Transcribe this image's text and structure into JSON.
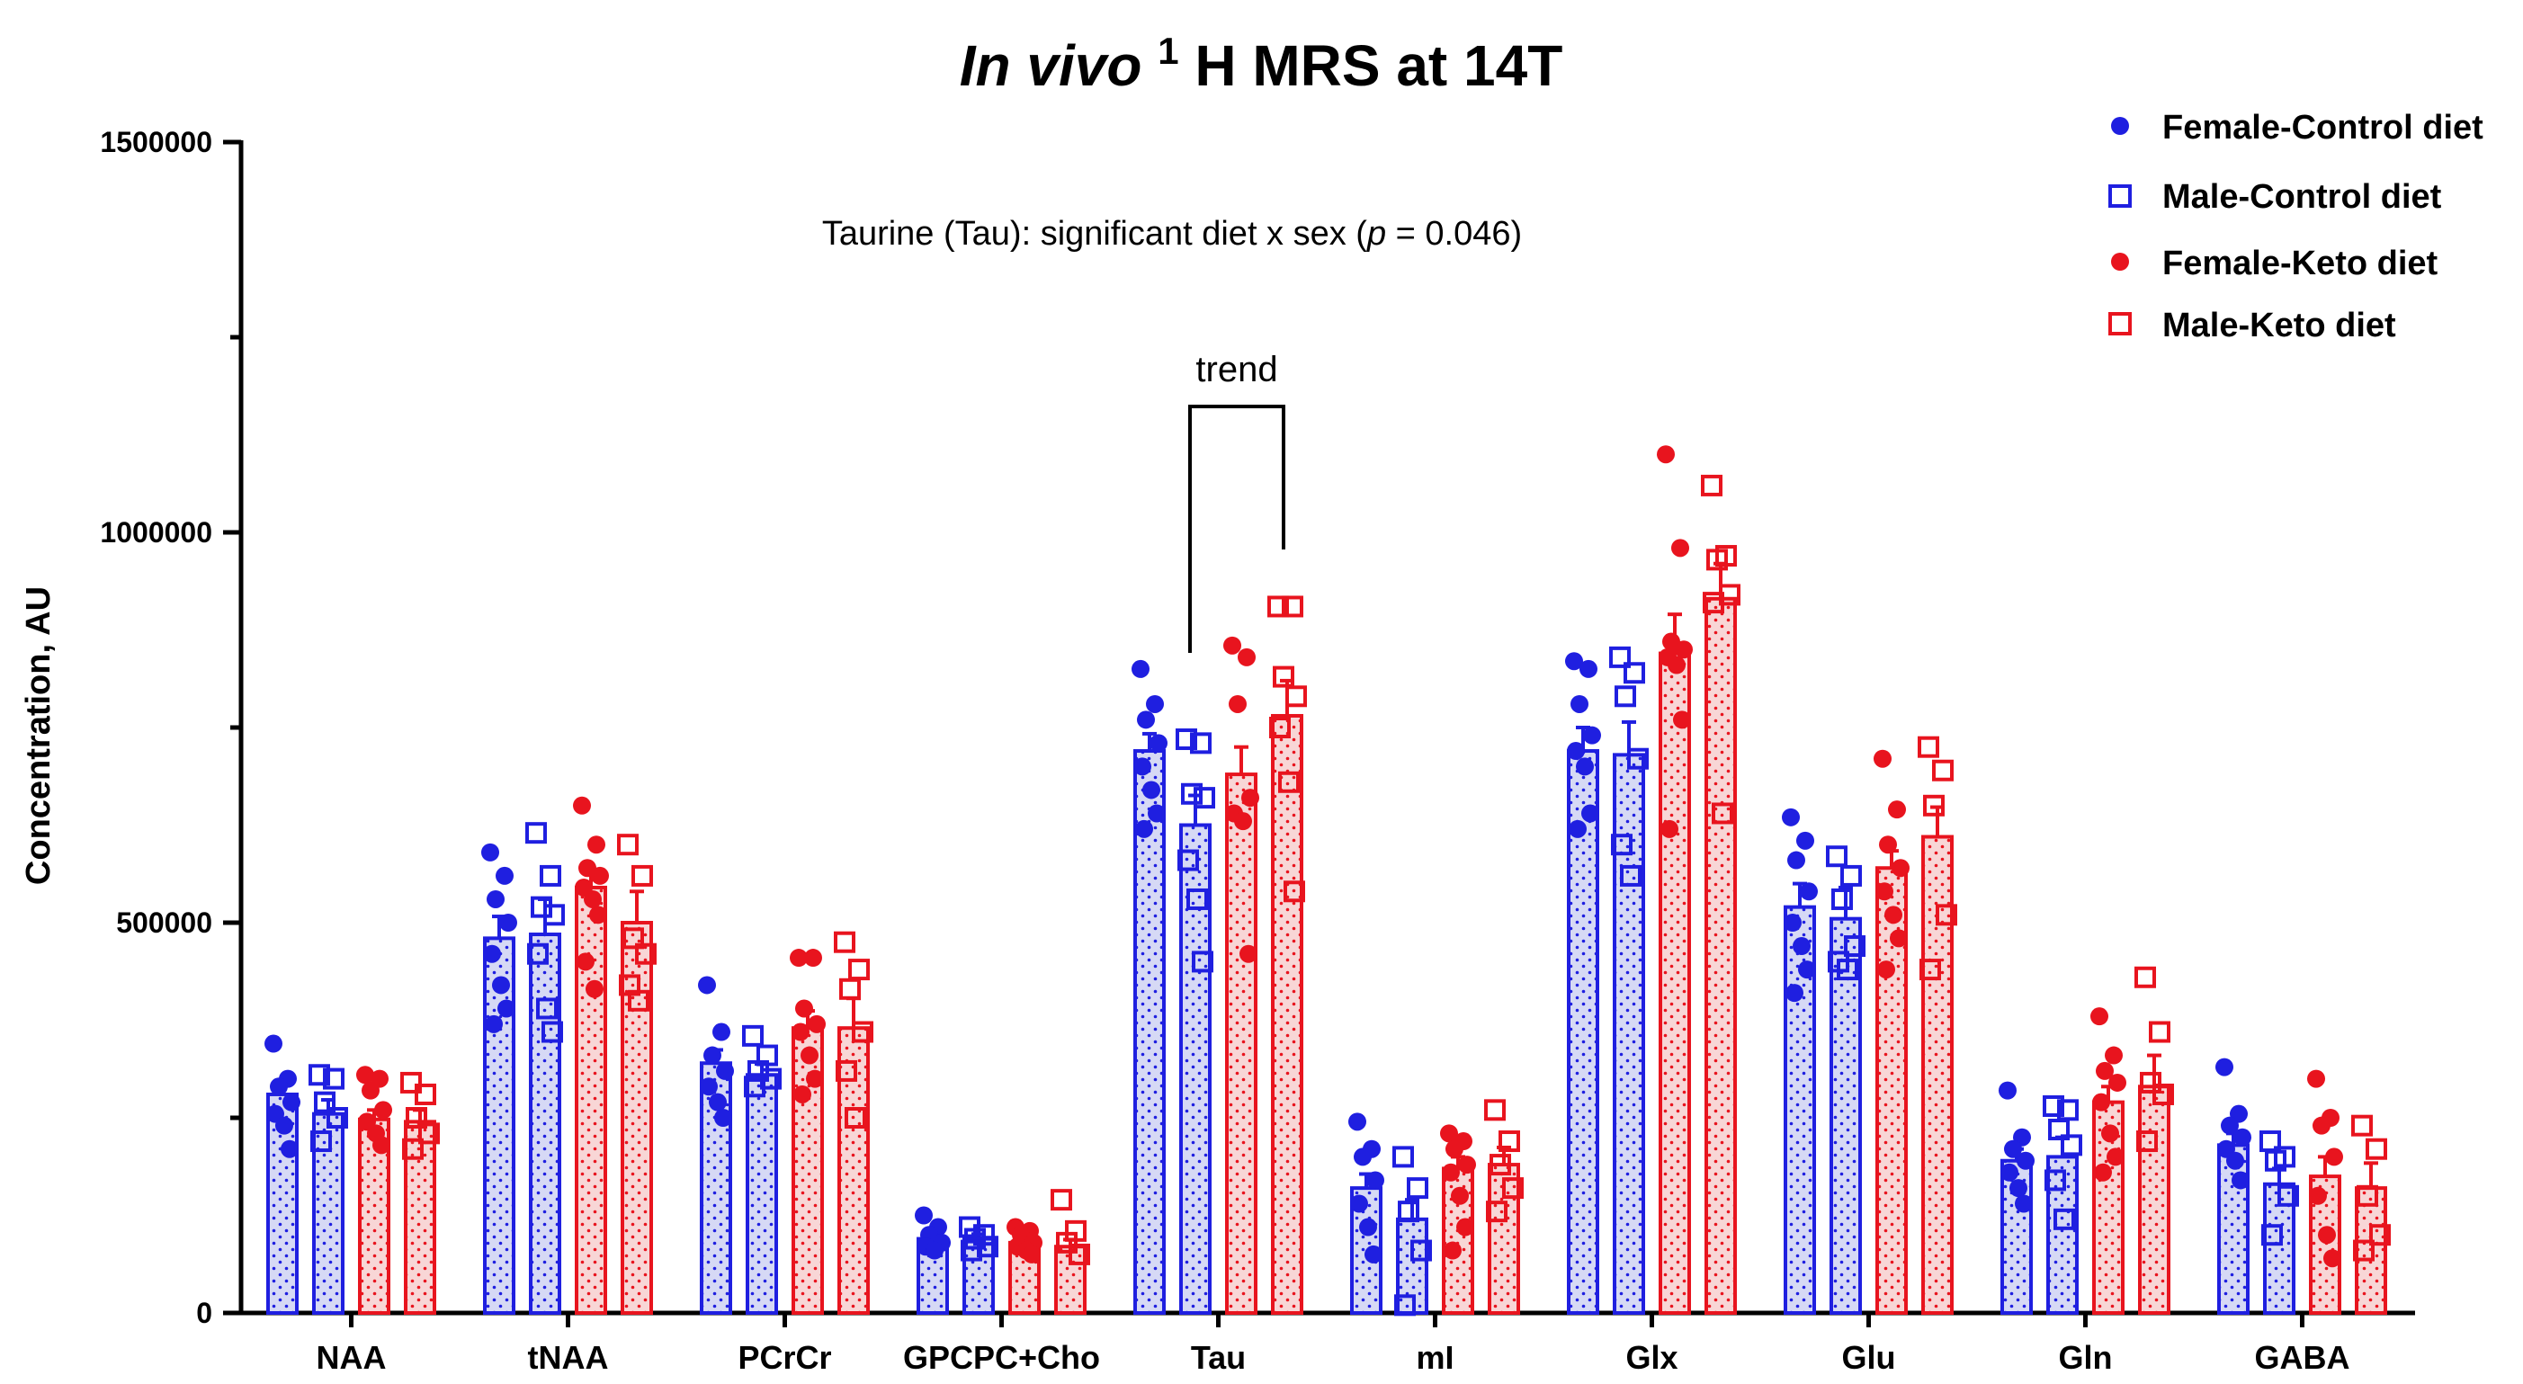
{
  "chart_data": {
    "type": "bar",
    "title": {
      "italic_part": "In vivo",
      "superscript": "1",
      "rest": "H MRS at 14T"
    },
    "ylabel": "Concentration, AU",
    "xlabel": "",
    "ylim": [
      0,
      1500000
    ],
    "yticks": [
      0,
      500000,
      1000000,
      1500000
    ],
    "ytick_labels": [
      "0",
      "500000",
      "1000000",
      "1500000"
    ],
    "categories": [
      "NAA",
      "tNAA",
      "PCrCr",
      "GPCPC+Cho",
      "Tau",
      "mI",
      "Glx",
      "Glu",
      "Gln",
      "GABA"
    ],
    "legend_position": "top-right",
    "grid": false,
    "colors": {
      "blue": "#1f1fe0",
      "red": "#e8141e",
      "blue_fill": "#d6d9f5",
      "red_fill": "#f8d6d6",
      "axis": "#000000"
    },
    "series": [
      {
        "name": "Female-Control diet",
        "color": "blue",
        "marker": "circle",
        "values": [
          280000,
          480000,
          320000,
          95000,
          720000,
          160000,
          720000,
          520000,
          195000,
          215000
        ],
        "errors": [
          15000,
          28000,
          17000,
          6000,
          22000,
          18000,
          30000,
          30000,
          15000,
          15000
        ],
        "points": [
          [
            345000,
            300000,
            290000,
            270000,
            255000,
            240000,
            210000
          ],
          [
            590000,
            560000,
            530000,
            500000,
            460000,
            420000,
            390000,
            370000
          ],
          [
            420000,
            360000,
            330000,
            310000,
            290000,
            270000,
            250000
          ],
          [
            125000,
            110000,
            100000,
            90000,
            85000,
            80000
          ],
          [
            825000,
            780000,
            760000,
            730000,
            700000,
            670000,
            640000,
            620000
          ],
          [
            245000,
            210000,
            200000,
            170000,
            140000,
            110000,
            75000
          ],
          [
            835000,
            825000,
            780000,
            740000,
            720000,
            700000,
            640000,
            620000
          ],
          [
            635000,
            605000,
            580000,
            540000,
            500000,
            470000,
            440000,
            410000
          ],
          [
            285000,
            225000,
            210000,
            195000,
            180000,
            160000,
            140000
          ],
          [
            315000,
            255000,
            240000,
            225000,
            210000,
            195000,
            170000
          ]
        ]
      },
      {
        "name": "Male-Control diet",
        "color": "blue",
        "marker": "square",
        "values": [
          255000,
          485000,
          305000,
          95000,
          625000,
          120000,
          715000,
          505000,
          200000,
          165000
        ],
        "errors": [
          18000,
          45000,
          14000,
          6000,
          38000,
          25000,
          42000,
          40000,
          25000,
          20000
        ],
        "points": [
          [
            305000,
            300000,
            270000,
            250000,
            220000
          ],
          [
            615000,
            560000,
            520000,
            510000,
            460000,
            390000,
            360000
          ],
          [
            355000,
            330000,
            310000,
            300000,
            290000
          ],
          [
            110000,
            100000,
            95000,
            85000,
            80000
          ],
          [
            735000,
            730000,
            665000,
            660000,
            580000,
            530000,
            450000
          ],
          [
            200000,
            160000,
            130000,
            80000,
            10000
          ],
          [
            840000,
            820000,
            790000,
            710000,
            600000,
            560000
          ],
          [
            585000,
            560000,
            530000,
            470000,
            450000,
            440000
          ],
          [
            265000,
            260000,
            235000,
            215000,
            170000,
            120000
          ],
          [
            220000,
            200000,
            195000,
            150000,
            100000
          ]
        ]
      },
      {
        "name": "Female-Keto diet",
        "color": "red",
        "marker": "circle",
        "values": [
          248000,
          545000,
          365000,
          90000,
          690000,
          185000,
          845000,
          570000,
          270000,
          175000
        ],
        "errors": [
          12000,
          22000,
          22000,
          5000,
          35000,
          15000,
          50000,
          22000,
          20000,
          25000
        ],
        "points": [
          [
            305000,
            300000,
            285000,
            260000,
            245000,
            230000,
            215000
          ],
          [
            650000,
            600000,
            570000,
            560000,
            545000,
            530000,
            510000,
            450000,
            415000
          ],
          [
            455000,
            455000,
            390000,
            370000,
            360000,
            330000,
            300000,
            280000
          ],
          [
            110000,
            105000,
            100000,
            90000,
            85000,
            80000,
            75000
          ],
          [
            855000,
            840000,
            780000,
            660000,
            640000,
            630000,
            460000
          ],
          [
            230000,
            220000,
            210000,
            190000,
            180000,
            150000,
            110000,
            80000
          ],
          [
            1100000,
            980000,
            860000,
            850000,
            840000,
            830000,
            760000,
            620000
          ],
          [
            710000,
            645000,
            600000,
            570000,
            540000,
            510000,
            480000,
            440000
          ],
          [
            380000,
            330000,
            310000,
            295000,
            270000,
            230000,
            200000,
            180000
          ],
          [
            300000,
            250000,
            240000,
            200000,
            150000,
            100000,
            70000
          ]
        ]
      },
      {
        "name": "Male-Keto diet",
        "color": "red",
        "marker": "square",
        "values": [
          245000,
          500000,
          365000,
          85000,
          765000,
          190000,
          915000,
          610000,
          290000,
          160000
        ],
        "errors": [
          15000,
          40000,
          38000,
          9000,
          45000,
          22000,
          45000,
          38000,
          40000,
          32000
        ],
        "points": [
          [
            295000,
            280000,
            250000,
            230000,
            210000
          ],
          [
            600000,
            560000,
            480000,
            460000,
            420000,
            400000
          ],
          [
            475000,
            440000,
            415000,
            360000,
            310000,
            250000
          ],
          [
            145000,
            105000,
            90000,
            75000
          ],
          [
            905000,
            905000,
            815000,
            790000,
            750000,
            680000,
            540000
          ],
          [
            260000,
            220000,
            190000,
            160000,
            130000
          ],
          [
            1060000,
            970000,
            965000,
            920000,
            910000,
            640000
          ],
          [
            725000,
            695000,
            650000,
            510000,
            440000
          ],
          [
            430000,
            360000,
            295000,
            280000,
            220000
          ],
          [
            240000,
            210000,
            150000,
            100000,
            80000
          ]
        ]
      }
    ],
    "annotations": {
      "significance_prefix": "Taurine (Tau): significant diet x sex (",
      "significance_p": "p",
      "significance_suffix": " = 0.046)",
      "trend_label": "trend"
    }
  }
}
